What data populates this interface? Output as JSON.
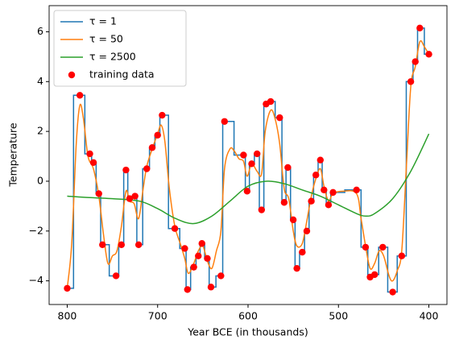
{
  "chart_data": {
    "type": "line",
    "x_label": "Year BCE (in thousands)",
    "y_label": "Temperature",
    "xlim": [
      820,
      380
    ],
    "ylim": [
      -4.95,
      7.05
    ],
    "xticks": [
      800,
      700,
      600,
      500,
      400
    ],
    "yticks": [
      {
        "value": -4,
        "label": "−4"
      },
      {
        "value": -2,
        "label": "−2"
      },
      0,
      2,
      4,
      6
    ],
    "grid": false,
    "legend": "upper left",
    "series": [
      {
        "name": "τ = 1",
        "type": "line",
        "drawstyle": "steps-mid",
        "color": "#1f77b4",
        "x": [
          800,
          786,
          775,
          771,
          765,
          761,
          746,
          740,
          735,
          731,
          725,
          721,
          712,
          706,
          700,
          695,
          681,
          670,
          667,
          660,
          655,
          651,
          645,
          641,
          630,
          626,
          605,
          601,
          596,
          590,
          585,
          580,
          575,
          565,
          560,
          556,
          550,
          546,
          540,
          535,
          530,
          525,
          520,
          516,
          511,
          506,
          480,
          470,
          465,
          460,
          451,
          440,
          430,
          420,
          415,
          410,
          400
        ],
        "values": [
          -4.3,
          3.45,
          1.1,
          0.75,
          -0.5,
          -2.55,
          -3.8,
          -2.55,
          0.45,
          -0.7,
          -0.6,
          -2.55,
          0.5,
          1.35,
          1.85,
          2.65,
          -1.9,
          -2.7,
          -4.35,
          -3.45,
          -3.0,
          -2.5,
          -3.1,
          -4.25,
          -3.8,
          2.4,
          1.05,
          -0.4,
          0.7,
          1.1,
          -1.15,
          3.1,
          3.2,
          2.55,
          -0.85,
          0.55,
          -1.55,
          -3.5,
          -2.85,
          -2.0,
          -0.8,
          0.25,
          0.85,
          -0.35,
          -0.95,
          -0.45,
          -0.35,
          -2.65,
          -3.85,
          -3.75,
          -2.65,
          -4.45,
          -3.0,
          4.0,
          4.8,
          6.15,
          5.1
        ]
      },
      {
        "name": "τ = 50",
        "type": "line",
        "color": "#ff7f0e",
        "x": [
          800,
          795,
          790,
          786,
          782,
          777,
          771,
          765,
          760,
          755,
          750,
          745,
          740,
          735,
          731,
          726,
          721,
          716,
          712,
          706,
          700,
          696,
          692,
          687,
          681,
          675,
          670,
          666,
          660,
          655,
          650,
          645,
          640,
          635,
          630,
          626,
          620,
          615,
          610,
          605,
          601,
          596,
          590,
          585,
          581,
          575,
          570,
          565,
          560,
          555,
          550,
          546,
          540,
          535,
          530,
          525,
          520,
          516,
          511,
          506,
          495,
          480,
          475,
          470,
          465,
          460,
          455,
          450,
          444,
          440,
          435,
          430,
          425,
          420,
          415,
          410,
          405,
          400
        ],
        "values": [
          -4.3,
          -2.5,
          1.5,
          3.05,
          2.5,
          1.0,
          0.5,
          -0.6,
          -2.1,
          -3.3,
          -3.0,
          -2.8,
          -1.8,
          -0.4,
          -0.8,
          -0.9,
          -1.5,
          -0.3,
          0.6,
          1.3,
          1.9,
          2.25,
          1.6,
          -0.3,
          -1.8,
          -2.5,
          -3.1,
          -3.7,
          -3.3,
          -2.8,
          -2.6,
          -3.2,
          -3.5,
          -2.8,
          -2.0,
          0.5,
          1.3,
          1.2,
          0.9,
          0.8,
          0.2,
          0.7,
          0.4,
          0.3,
          2.0,
          2.85,
          2.5,
          1.5,
          -0.3,
          -0.7,
          -2.0,
          -2.6,
          -2.5,
          -1.6,
          -0.6,
          0.1,
          0.5,
          -0.2,
          -0.8,
          -0.5,
          -0.4,
          -0.5,
          -1.5,
          -2.6,
          -3.5,
          -3.3,
          -2.8,
          -3.0,
          -3.8,
          -4.0,
          -3.6,
          -2.8,
          0.5,
          3.8,
          4.6,
          5.6,
          5.4,
          5.1
        ]
      },
      {
        "name": "τ = 2500",
        "type": "line",
        "color": "#2ca02c",
        "x": [
          800,
          780,
          750,
          720,
          700,
          680,
          660,
          640,
          620,
          600,
          580,
          560,
          540,
          520,
          500,
          480,
          470,
          460,
          440,
          420,
          400
        ],
        "values": [
          -0.6,
          -0.65,
          -0.7,
          -0.8,
          -1.1,
          -1.5,
          -1.7,
          -1.4,
          -0.8,
          -0.2,
          0.0,
          -0.1,
          -0.35,
          -0.6,
          -0.95,
          -1.3,
          -1.4,
          -1.3,
          -0.7,
          0.4,
          1.9
        ]
      },
      {
        "name": "training data",
        "type": "scatter",
        "color": "#ff0000",
        "x": [
          800,
          786,
          775,
          771,
          765,
          761,
          746,
          740,
          735,
          731,
          725,
          721,
          712,
          706,
          700,
          695,
          681,
          670,
          667,
          660,
          655,
          651,
          645,
          641,
          630,
          626,
          605,
          601,
          596,
          590,
          585,
          580,
          575,
          565,
          560,
          556,
          550,
          546,
          540,
          535,
          530,
          525,
          520,
          516,
          511,
          506,
          480,
          470,
          465,
          460,
          451,
          440,
          430,
          420,
          415,
          410,
          400
        ],
        "values": [
          -4.3,
          3.45,
          1.1,
          0.75,
          -0.5,
          -2.55,
          -3.8,
          -2.55,
          0.45,
          -0.7,
          -0.6,
          -2.55,
          0.5,
          1.35,
          1.85,
          2.65,
          -1.9,
          -2.7,
          -4.35,
          -3.45,
          -3.0,
          -2.5,
          -3.1,
          -4.25,
          -3.8,
          2.4,
          1.05,
          -0.4,
          0.7,
          1.1,
          -1.15,
          3.1,
          3.2,
          2.55,
          -0.85,
          0.55,
          -1.55,
          -3.5,
          -2.85,
          -2.0,
          -0.8,
          0.25,
          0.85,
          -0.35,
          -0.95,
          -0.45,
          -0.35,
          -2.65,
          -3.85,
          -3.75,
          -2.65,
          -4.45,
          -3.0,
          4.0,
          4.8,
          6.15,
          5.1
        ]
      }
    ]
  }
}
